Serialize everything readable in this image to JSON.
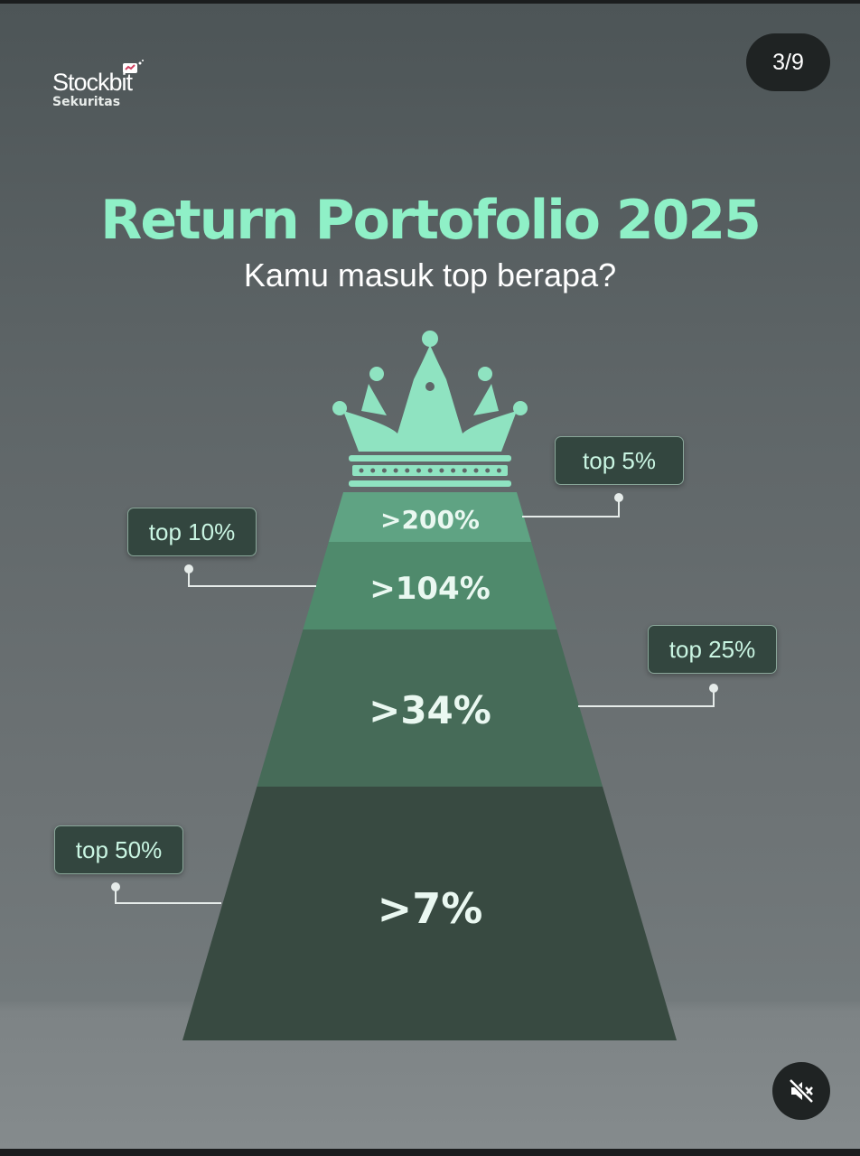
{
  "brand": {
    "name": "Stockbit",
    "sub": "Sekuritas"
  },
  "counter": "3/9",
  "title": "Return Portofolio 2025",
  "subtitle": "Kamu masuk top berapa?",
  "tiers": [
    {
      "tag": "top 5%",
      "value": ">200%",
      "color": "#5fa383"
    },
    {
      "tag": "top 10%",
      "value": ">104%",
      "color": "#4f8a6c"
    },
    {
      "tag": "top 25%",
      "value": ">34%",
      "color": "#466b58"
    },
    {
      "tag": "top 50%",
      "value": ">7%",
      "color": "#384a41"
    }
  ],
  "accent": "#8ff0c7",
  "icons": {
    "crown": "crown-icon",
    "mute": "speaker-muted-icon"
  }
}
